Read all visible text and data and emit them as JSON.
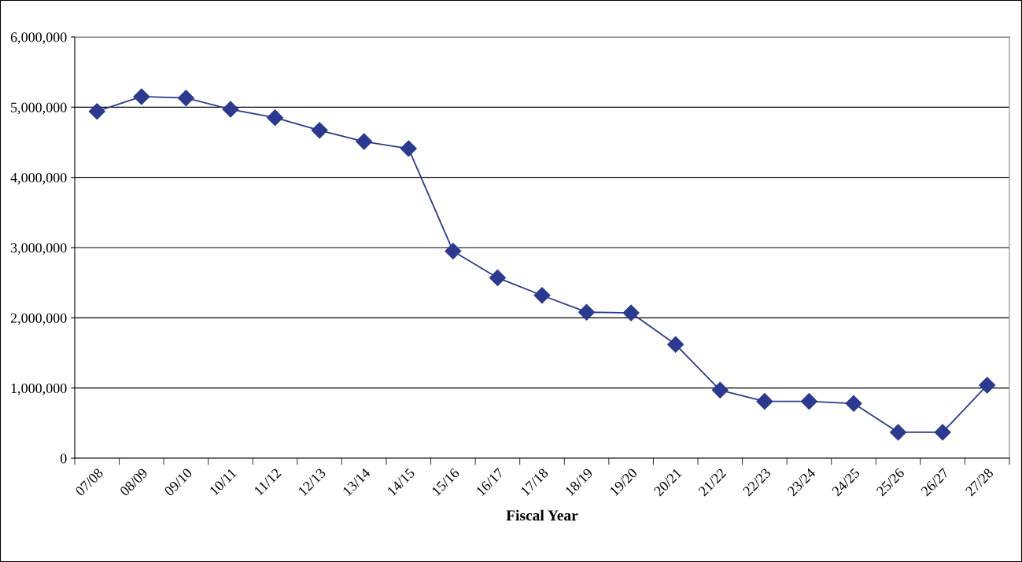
{
  "chart_data": {
    "type": "line",
    "xlabel": "Fiscal Year",
    "categories": [
      "07/08",
      "08/09",
      "09/10",
      "10/11",
      "11/12",
      "12/13",
      "13/14",
      "14/15",
      "15/16",
      "16/17",
      "17/18",
      "18/19",
      "19/20",
      "20/21",
      "21/22",
      "22/23",
      "23/24",
      "24/25",
      "25/26",
      "26/27",
      "27/28"
    ],
    "series": [
      {
        "color": "#2b3a8f",
        "values": [
          4940000,
          5150000,
          5130000,
          4970000,
          4850000,
          4670000,
          4510000,
          4410000,
          2950000,
          2570000,
          2320000,
          2080000,
          2070000,
          1620000,
          970000,
          810000,
          810000,
          780000,
          370000,
          370000,
          1040000
        ]
      }
    ],
    "ylim": [
      0,
      6000000
    ],
    "yticks": [
      {
        "value": 0,
        "label": "0"
      },
      {
        "value": 1000000,
        "label": "1,000,000"
      },
      {
        "value": 2000000,
        "label": "2,000,000"
      },
      {
        "value": 3000000,
        "label": "3,000,000"
      },
      {
        "value": 4000000,
        "label": "4,000,000"
      },
      {
        "value": 5000000,
        "label": "5,000,000"
      },
      {
        "value": 6000000,
        "label": "6,000,000"
      }
    ],
    "grid": "y",
    "legend": false,
    "marker": "diamond",
    "line_style": "solid"
  }
}
